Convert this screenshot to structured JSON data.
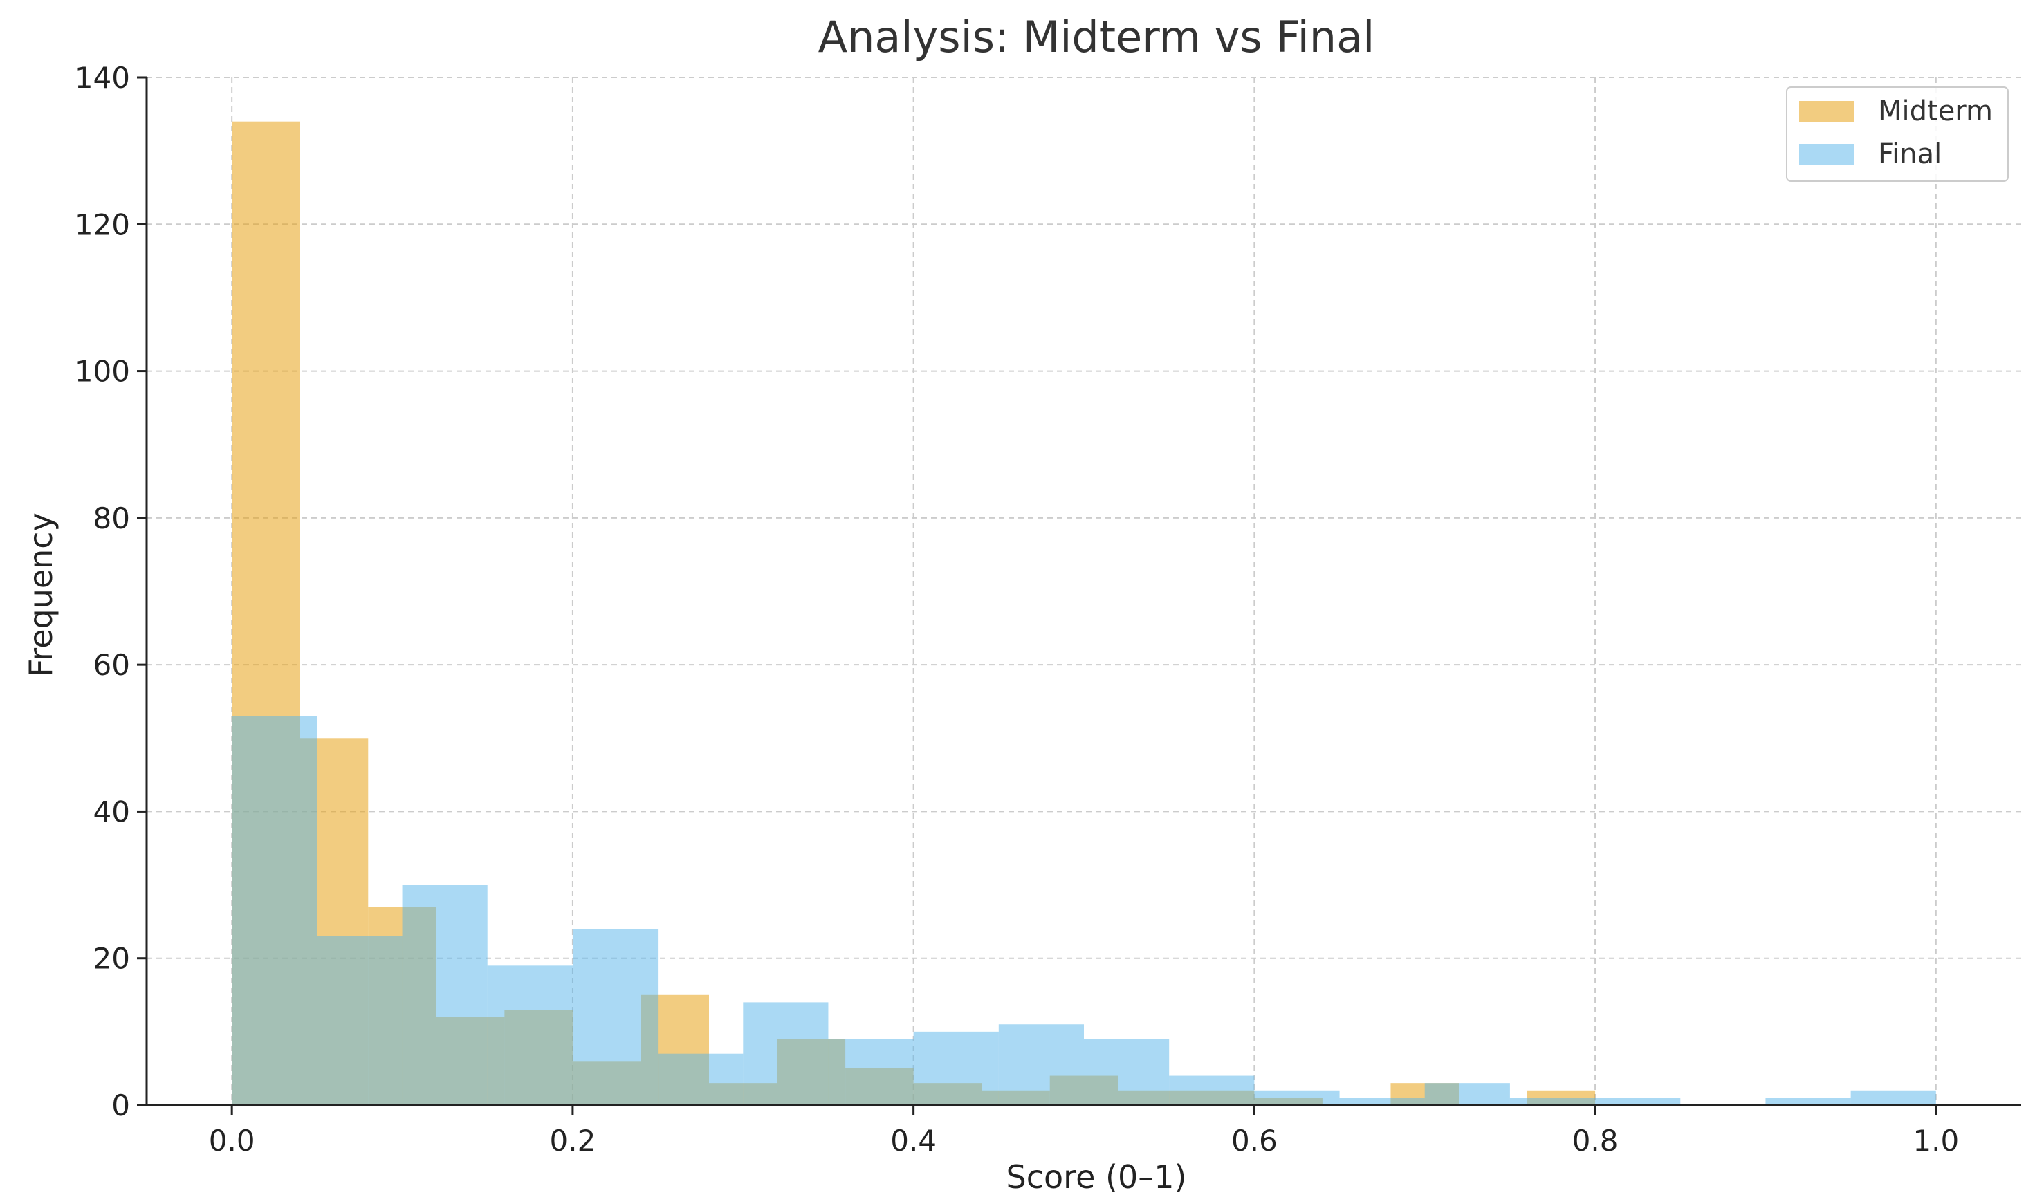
{
  "chart_data": {
    "type": "bar",
    "title": "Analysis: Midterm vs Final",
    "xlabel": "Score (0–1)",
    "ylabel": "Frequency",
    "xlim": [
      -0.05,
      1.05
    ],
    "ylim": [
      0,
      140
    ],
    "xticks": [
      "0.0",
      "0.2",
      "0.4",
      "0.6",
      "0.8",
      "1.0"
    ],
    "yticks": [
      "0",
      "20",
      "40",
      "60",
      "80",
      "100",
      "120",
      "140"
    ],
    "grid": true,
    "legend_position": "top-right",
    "series": [
      {
        "name": "Midterm",
        "color": "#E8A317",
        "opacity": 0.55,
        "bins": [
          {
            "x0": 0.0,
            "x1": 0.04,
            "value": 134
          },
          {
            "x0": 0.04,
            "x1": 0.08,
            "value": 50
          },
          {
            "x0": 0.08,
            "x1": 0.12,
            "value": 27
          },
          {
            "x0": 0.12,
            "x1": 0.16,
            "value": 12
          },
          {
            "x0": 0.16,
            "x1": 0.2,
            "value": 13
          },
          {
            "x0": 0.2,
            "x1": 0.24,
            "value": 6
          },
          {
            "x0": 0.24,
            "x1": 0.28,
            "value": 15
          },
          {
            "x0": 0.28,
            "x1": 0.32,
            "value": 3
          },
          {
            "x0": 0.32,
            "x1": 0.36,
            "value": 9
          },
          {
            "x0": 0.36,
            "x1": 0.4,
            "value": 5
          },
          {
            "x0": 0.4,
            "x1": 0.44,
            "value": 3
          },
          {
            "x0": 0.44,
            "x1": 0.48,
            "value": 2
          },
          {
            "x0": 0.48,
            "x1": 0.52,
            "value": 4
          },
          {
            "x0": 0.52,
            "x1": 0.56,
            "value": 2
          },
          {
            "x0": 0.56,
            "x1": 0.6,
            "value": 2
          },
          {
            "x0": 0.6,
            "x1": 0.64,
            "value": 1
          },
          {
            "x0": 0.64,
            "x1": 0.68,
            "value": 0
          },
          {
            "x0": 0.68,
            "x1": 0.72,
            "value": 3
          },
          {
            "x0": 0.72,
            "x1": 0.76,
            "value": 0
          },
          {
            "x0": 0.76,
            "x1": 0.8,
            "value": 2
          }
        ]
      },
      {
        "name": "Final",
        "color": "#56B4E9",
        "opacity": 0.5,
        "bins": [
          {
            "x0": 0.0,
            "x1": 0.05,
            "value": 53
          },
          {
            "x0": 0.05,
            "x1": 0.1,
            "value": 23
          },
          {
            "x0": 0.1,
            "x1": 0.15,
            "value": 30
          },
          {
            "x0": 0.15,
            "x1": 0.2,
            "value": 19
          },
          {
            "x0": 0.2,
            "x1": 0.25,
            "value": 24
          },
          {
            "x0": 0.25,
            "x1": 0.3,
            "value": 7
          },
          {
            "x0": 0.3,
            "x1": 0.35,
            "value": 14
          },
          {
            "x0": 0.35,
            "x1": 0.4,
            "value": 9
          },
          {
            "x0": 0.4,
            "x1": 0.45,
            "value": 10
          },
          {
            "x0": 0.45,
            "x1": 0.5,
            "value": 11
          },
          {
            "x0": 0.5,
            "x1": 0.55,
            "value": 9
          },
          {
            "x0": 0.55,
            "x1": 0.6,
            "value": 4
          },
          {
            "x0": 0.6,
            "x1": 0.65,
            "value": 2
          },
          {
            "x0": 0.65,
            "x1": 0.7,
            "value": 1
          },
          {
            "x0": 0.7,
            "x1": 0.75,
            "value": 3
          },
          {
            "x0": 0.75,
            "x1": 0.8,
            "value": 1
          },
          {
            "x0": 0.8,
            "x1": 0.85,
            "value": 1
          },
          {
            "x0": 0.85,
            "x1": 0.9,
            "value": 0
          },
          {
            "x0": 0.9,
            "x1": 0.95,
            "value": 1
          },
          {
            "x0": 0.95,
            "x1": 1.0,
            "value": 2
          }
        ]
      }
    ]
  }
}
